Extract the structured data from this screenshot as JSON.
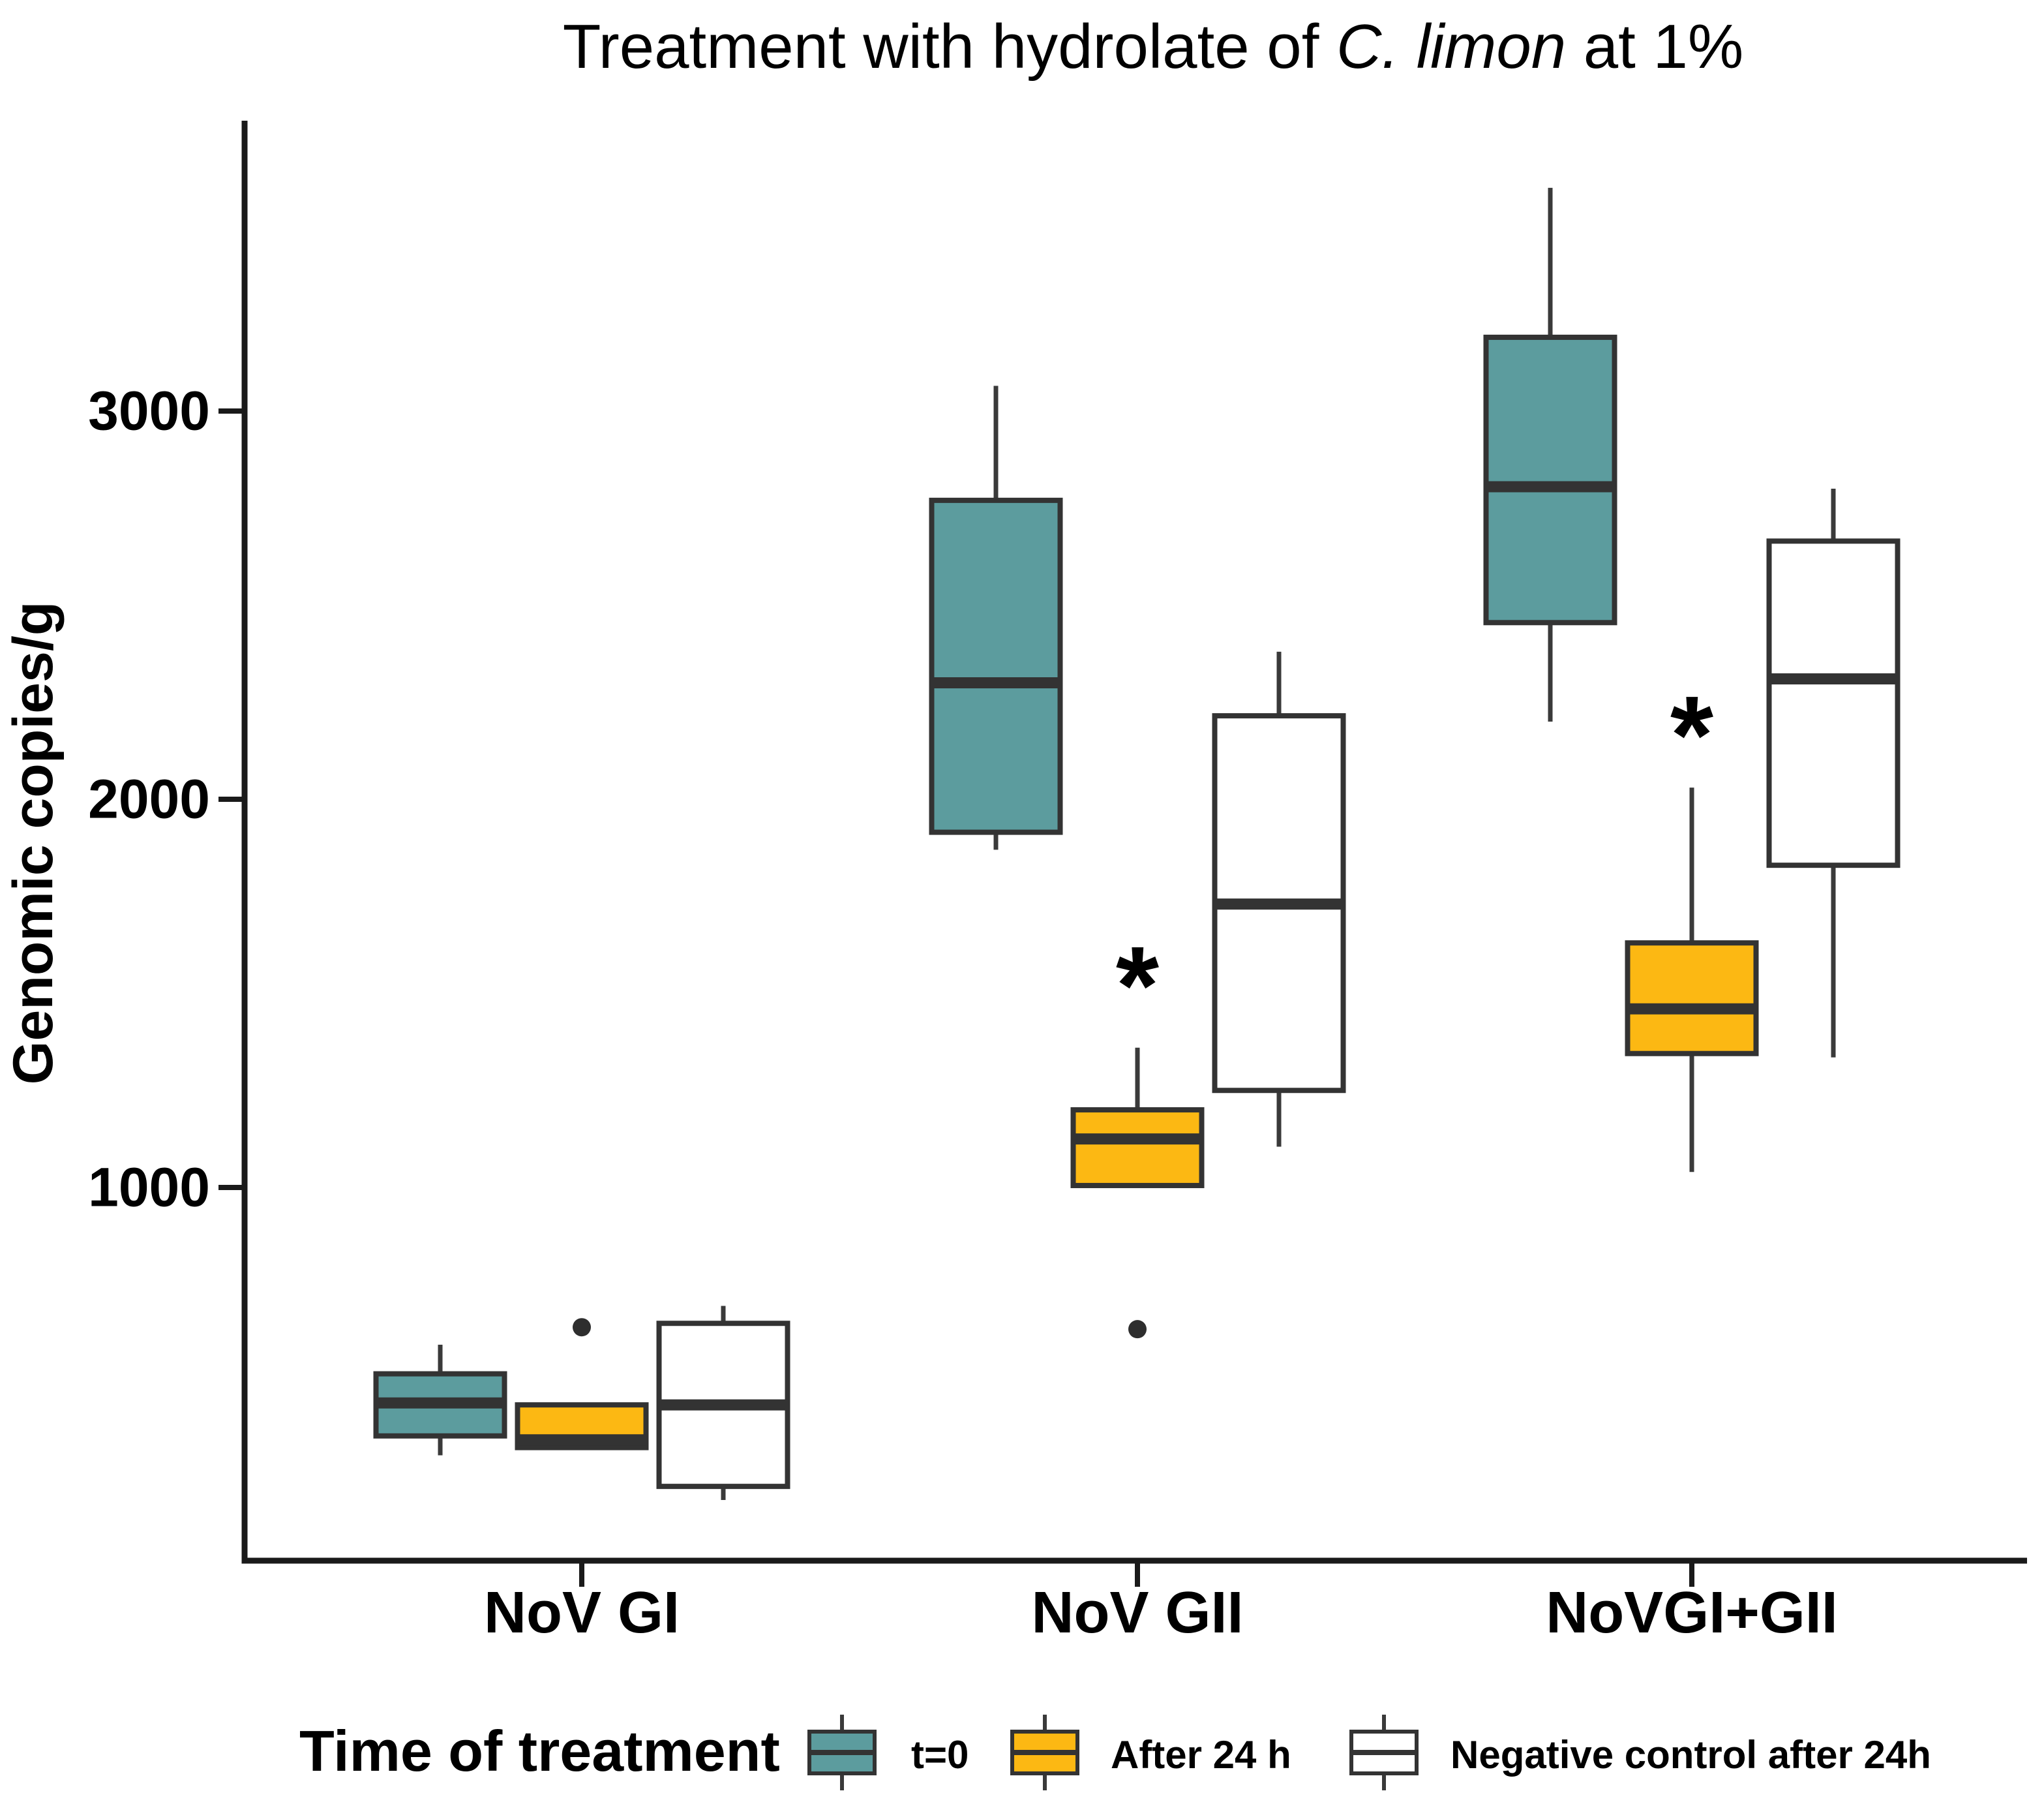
{
  "chart_data": {
    "type": "boxplot",
    "title": "Treatment with hydrolate of C. limon at 1%",
    "title_parts": [
      {
        "text": "Treatment with hydrolate of ",
        "italic": false
      },
      {
        "text": "C. limon",
        "italic": true
      },
      {
        "text": " at 1%",
        "italic": false
      }
    ],
    "ylabel": "Genomic copies/g",
    "xlabel": "",
    "grid": false,
    "y_ticks": [
      1000,
      2000,
      3000
    ],
    "ylim": [
      40,
      3730
    ],
    "categories": [
      "NoV GI",
      "NoV GII",
      "NoVGI+GII"
    ],
    "colors": {
      "teal": "#5C9C9E",
      "orange": "#FCB813",
      "white": "#FFFFFF",
      "box_border": "#333333",
      "median": "#333333",
      "whisker": "#3A3A3A",
      "outlier": "#2E2E2E",
      "axis": "#1A1A1A",
      "text": "#000000"
    },
    "legend": {
      "title": "Time of treatment",
      "position": "bottom",
      "items": [
        {
          "label": "t=0",
          "color_key": "teal"
        },
        {
          "label": "After 24 h",
          "color_key": "orange"
        },
        {
          "label": "Negative control after 24h",
          "color_key": "white"
        }
      ]
    },
    "series": [
      {
        "name": "t=0",
        "color_key": "teal",
        "boxes": [
          {
            "category": "NoV GI",
            "min": 310,
            "q1": 360,
            "median": 445,
            "q3": 520,
            "max": 595,
            "outliers": []
          },
          {
            "category": "NoV GII",
            "min": 1870,
            "q1": 1915,
            "median": 2300,
            "q3": 2770,
            "max": 3065,
            "outliers": []
          },
          {
            "category": "NoVGI+GII",
            "min": 2200,
            "q1": 2455,
            "median": 2805,
            "q3": 3190,
            "max": 3575,
            "outliers": []
          }
        ]
      },
      {
        "name": "After 24 h",
        "color_key": "orange",
        "boxes": [
          {
            "category": "NoV GI",
            "min": 325,
            "q1": 330,
            "median": 350,
            "q3": 440,
            "max": 445,
            "outliers": [
              640
            ]
          },
          {
            "category": "NoV GII",
            "min": 1000,
            "q1": 1005,
            "median": 1125,
            "q3": 1200,
            "max": 1360,
            "outliers": [
              635
            ]
          },
          {
            "category": "NoVGI+GII",
            "min": 1040,
            "q1": 1345,
            "median": 1460,
            "q3": 1630,
            "max": 2030,
            "outliers": []
          }
        ]
      },
      {
        "name": "Negative control after 24h",
        "color_key": "white",
        "boxes": [
          {
            "category": "NoV GI",
            "min": 195,
            "q1": 230,
            "median": 440,
            "q3": 650,
            "max": 695,
            "outliers": []
          },
          {
            "category": "NoV GII",
            "min": 1105,
            "q1": 1250,
            "median": 1730,
            "q3": 2215,
            "max": 2380,
            "outliers": []
          },
          {
            "category": "NoVGI+GII",
            "min": 1335,
            "q1": 1830,
            "median": 2310,
            "q3": 2665,
            "max": 2800,
            "outliers": []
          }
        ]
      }
    ],
    "annotations": [
      {
        "text": "*",
        "category": "NoV GII",
        "series": "After 24 h",
        "y": 1565
      },
      {
        "text": "*",
        "category": "NoVGI+GII",
        "series": "After 24 h",
        "y": 2210
      }
    ]
  }
}
